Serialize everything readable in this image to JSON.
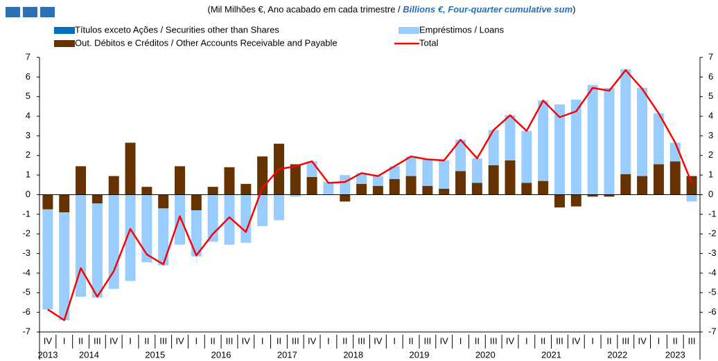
{
  "chart_data": {
    "type": "bar",
    "title_parts": [
      "(Mil Milhões €, Ano acabado em cada trimestre / ",
      "Billions €, Four-quarter cumulative sum",
      ")"
    ],
    "categories": [
      "IV",
      "I",
      "II",
      "III",
      "IV",
      "I",
      "II",
      "III",
      "IV",
      "I",
      "II",
      "III",
      "IV",
      "I",
      "II",
      "III",
      "IV",
      "I",
      "II",
      "III",
      "IV",
      "I",
      "II",
      "III",
      "IV",
      "I",
      "II",
      "III",
      "IV",
      "I",
      "II",
      "III",
      "IV",
      "I",
      "II",
      "III",
      "IV",
      "I",
      "II",
      "III"
    ],
    "years": [
      "2013",
      "2014",
      "2015",
      "2016",
      "2017",
      "2018",
      "2019",
      "2020",
      "2021",
      "2022",
      "2023"
    ],
    "series": [
      {
        "name": "Títulos exceto Ações / Securities other than Shares",
        "color": "#0070c0",
        "values": [
          0,
          0,
          0,
          0,
          0,
          0,
          0,
          0,
          0,
          0,
          0,
          0,
          0,
          0,
          0,
          0,
          0,
          0,
          0,
          0,
          0,
          0,
          0,
          0,
          0,
          0,
          0,
          0,
          0,
          0,
          0,
          0,
          0,
          0,
          0,
          0,
          0,
          0,
          0,
          0
        ]
      },
      {
        "name": "Empréstimos / Loans",
        "color": "#99ccff",
        "values": [
          -5.1,
          -5.5,
          -5.2,
          -4.8,
          -4.8,
          -4.4,
          -3.45,
          -2.9,
          -2.55,
          -2.35,
          -2.4,
          -2.55,
          -2.45,
          -1.6,
          -1.3,
          -0.1,
          0.8,
          0.65,
          1.0,
          0.55,
          0.5,
          0.65,
          1.0,
          1.35,
          1.45,
          1.6,
          1.25,
          1.8,
          2.3,
          2.65,
          4.1,
          4.6,
          4.85,
          5.6,
          5.45,
          5.35,
          4.5,
          2.6,
          0.95,
          -0.35
        ]
      },
      {
        "name": "Out. Débitos e Créditos / Other Accounts Receivable and Payable",
        "color": "#663300",
        "values": [
          -0.75,
          -0.9,
          1.45,
          -0.45,
          0.95,
          2.65,
          0.4,
          -0.7,
          1.45,
          -0.8,
          0.4,
          1.4,
          0.55,
          1.95,
          2.6,
          1.55,
          0.9,
          0,
          -0.35,
          0.55,
          0.45,
          0.8,
          0.95,
          0.45,
          0.3,
          1.2,
          0.6,
          1.5,
          1.75,
          0.6,
          0.7,
          -0.65,
          -0.6,
          -0.1,
          -0.1,
          1.05,
          0.95,
          1.55,
          1.7,
          0.95
        ]
      },
      {
        "name": "Total",
        "color": "#ff0000",
        "type": "line",
        "values": [
          -5.85,
          -6.4,
          -3.75,
          -5.2,
          -3.9,
          -1.75,
          -3.05,
          -3.55,
          -1.1,
          -3.1,
          -2.0,
          -1.15,
          -1.9,
          0.35,
          1.3,
          1.45,
          1.7,
          0.6,
          0.65,
          1.1,
          0.95,
          1.45,
          1.95,
          1.8,
          1.75,
          2.8,
          1.85,
          3.3,
          4.05,
          3.25,
          4.8,
          3.95,
          4.25,
          5.45,
          5.3,
          6.35,
          5.4,
          4.15,
          2.65,
          0.6
        ]
      }
    ],
    "ylim": [
      -7,
      7
    ],
    "yticks": [
      -7,
      -6,
      -5,
      -4,
      -3,
      -2,
      -1,
      0,
      1,
      2,
      3,
      4,
      5,
      6,
      7
    ],
    "y2lim": [
      -7,
      7
    ],
    "y2ticks": [
      -7,
      -6,
      -5,
      -4,
      -3,
      -2,
      -1,
      0,
      1,
      2,
      3,
      4,
      5,
      6,
      7
    ]
  }
}
